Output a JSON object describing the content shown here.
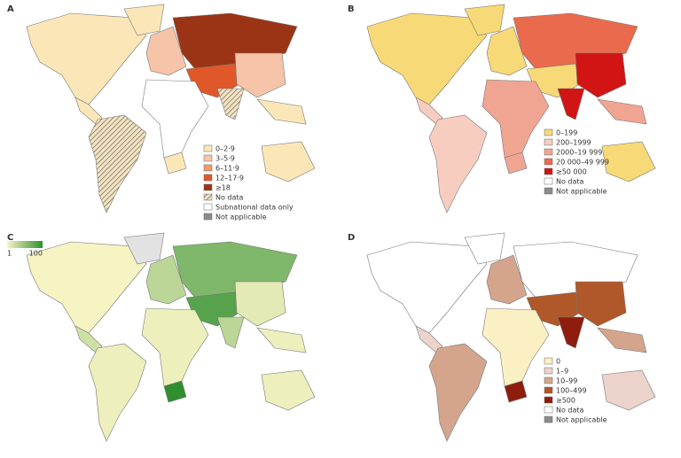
{
  "panels": [
    {
      "label": "A",
      "legend": [
        {
          "label": "0–2·9",
          "color": "#fbe6b8"
        },
        {
          "label": "3–5·9",
          "color": "#f6c4a8"
        },
        {
          "label": "6–11·9",
          "color": "#ef9a6a"
        },
        {
          "label": "12–17·9",
          "color": "#e0572a"
        },
        {
          "label": "≥18",
          "color": "#9b3415"
        },
        {
          "label": "No data",
          "color": "#f3e3c0",
          "hatch": true
        },
        {
          "label": "Subnational data only",
          "color": "#ffffff"
        },
        {
          "label": "Not applicable",
          "color": "#8c8c8c"
        }
      ]
    },
    {
      "label": "B",
      "legend": [
        {
          "label": "0–199",
          "color": "#f8d977"
        },
        {
          "label": "200–1999",
          "color": "#f7cdc0"
        },
        {
          "label": "2000–19 999",
          "color": "#f0a592"
        },
        {
          "label": "20 000–49 999",
          "color": "#ea6a4e"
        },
        {
          "label": "≥50 000",
          "color": "#d11414"
        },
        {
          "label": "No data",
          "color": "#ffffff"
        },
        {
          "label": "Not applicable",
          "color": "#8c8c8c"
        }
      ]
    },
    {
      "label": "C",
      "colorbar": {
        "min": 1,
        "max": 100,
        "colors": [
          "#f7f4c4",
          "#2f8f2f"
        ]
      }
    },
    {
      "label": "D",
      "legend": [
        {
          "label": "0",
          "color": "#fbefc4"
        },
        {
          "label": "1–9",
          "color": "#ecd3cb"
        },
        {
          "label": "10–99",
          "color": "#d4a58c"
        },
        {
          "label": "100–499",
          "color": "#b0582a"
        },
        {
          "label": "≥500",
          "color": "#8e1d0e"
        },
        {
          "label": "No data",
          "color": "#ffffff"
        },
        {
          "label": "Not applicable",
          "color": "#8c8c8c"
        }
      ]
    }
  ]
}
